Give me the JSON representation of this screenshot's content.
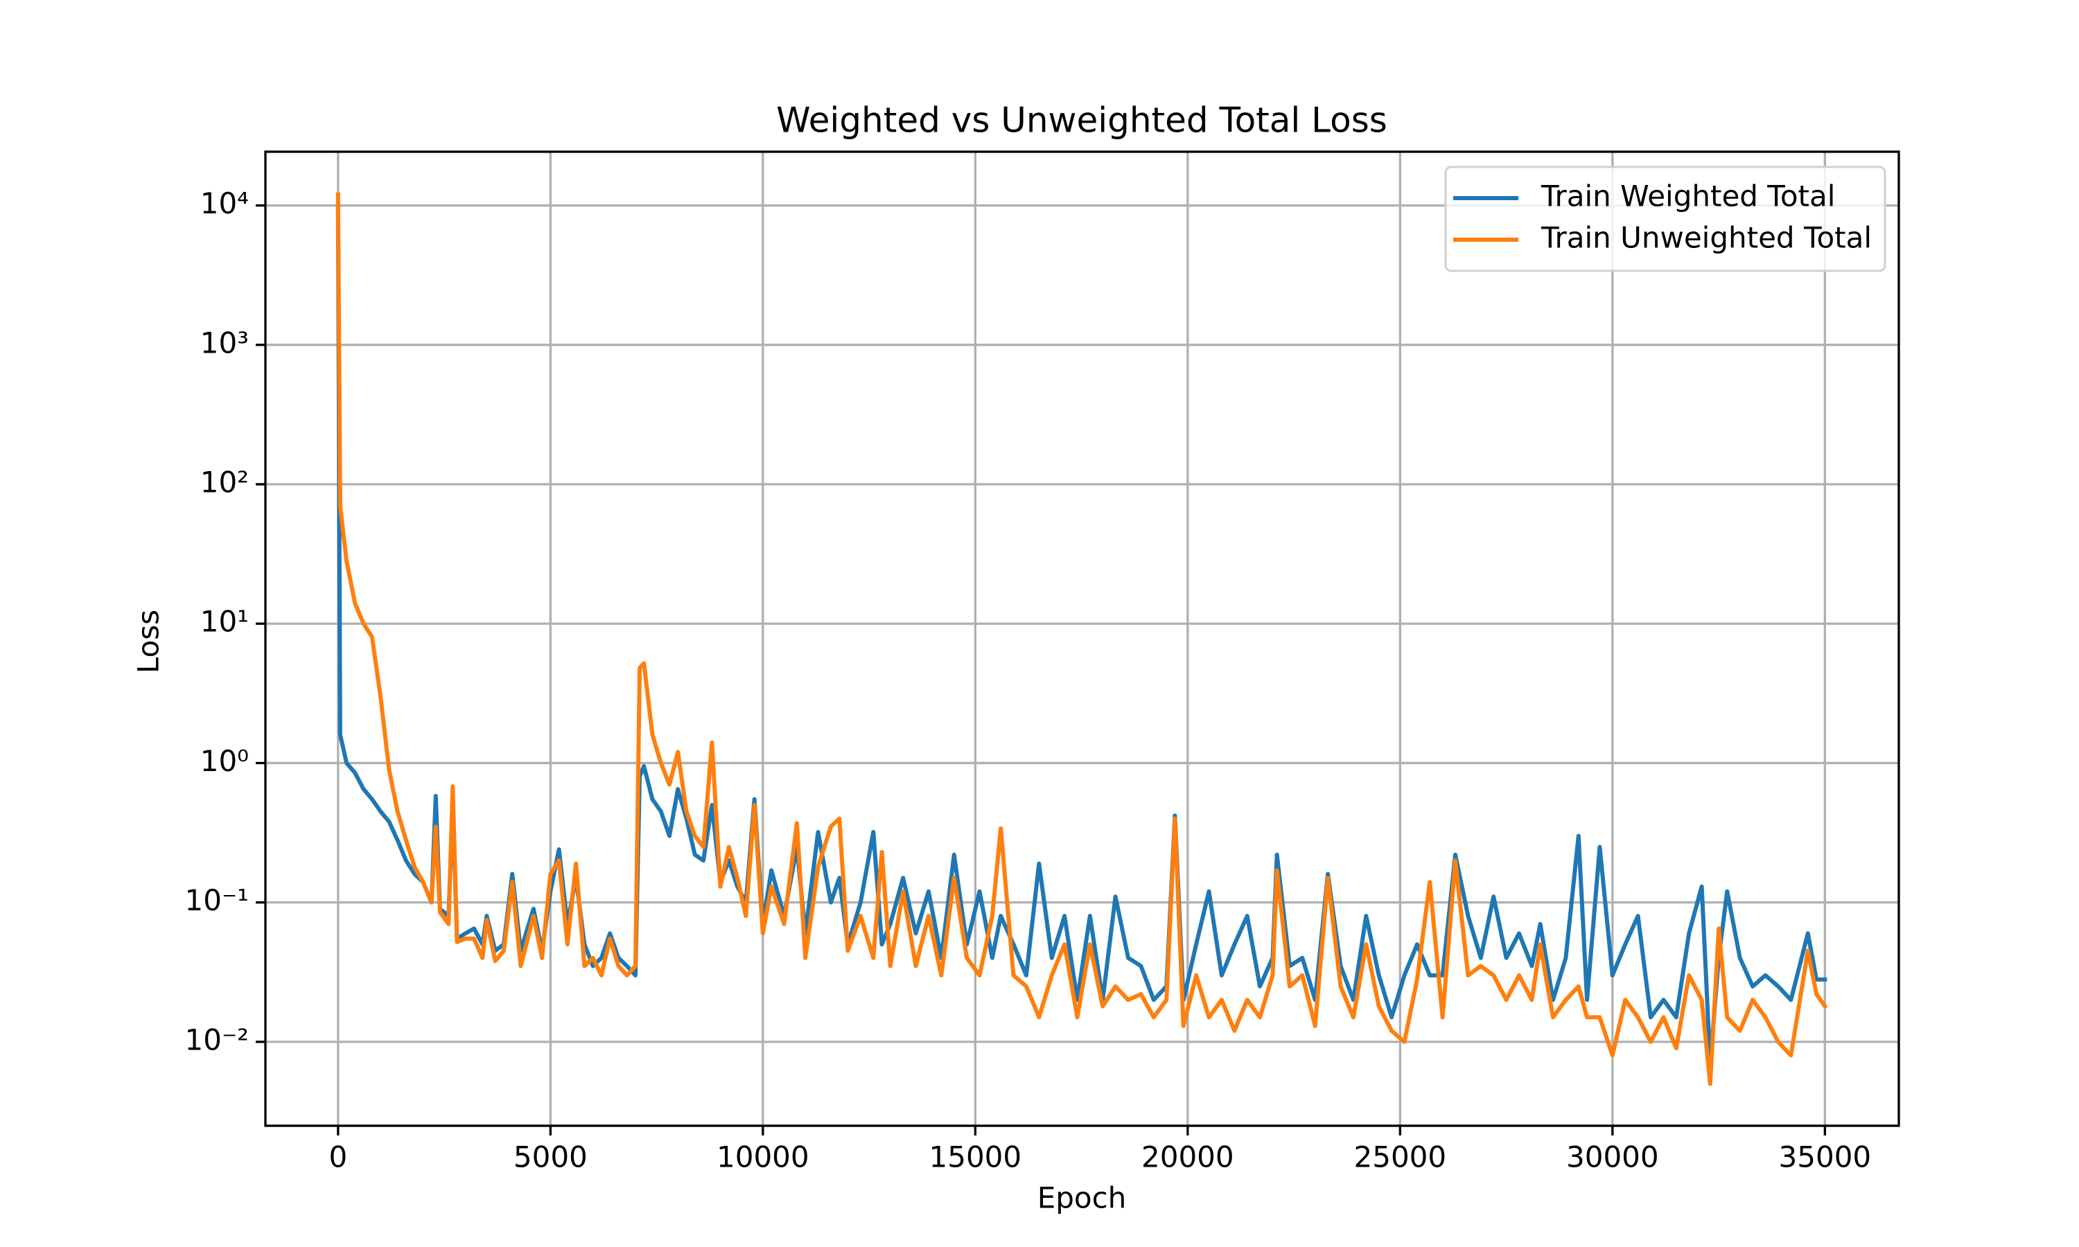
{
  "chart_data": {
    "type": "line",
    "title": "Weighted vs Unweighted Total Loss",
    "xlabel": "Epoch",
    "ylabel": "Loss",
    "yscale": "log",
    "grid": true,
    "legend": "upper right",
    "xlim": [
      -1710,
      36740
    ],
    "ylim": [
      0.0025,
      24300
    ],
    "xticks": [
      0,
      5000,
      10000,
      15000,
      20000,
      25000,
      30000,
      35000
    ],
    "yticks": [
      {
        "value": 0.01,
        "label": "10⁻²"
      },
      {
        "value": 0.1,
        "label": "10⁻¹"
      },
      {
        "value": 1,
        "label": "10⁰"
      },
      {
        "value": 10,
        "label": "10¹"
      },
      {
        "value": 100,
        "label": "10²"
      },
      {
        "value": 1000,
        "label": "10³"
      },
      {
        "value": 10000,
        "label": "10⁴"
      }
    ],
    "x": [
      0,
      50,
      200,
      400,
      600,
      800,
      1000,
      1200,
      1400,
      1600,
      1800,
      2000,
      2200,
      2300,
      2400,
      2600,
      2700,
      2800,
      3000,
      3200,
      3400,
      3500,
      3700,
      3900,
      4100,
      4300,
      4600,
      4800,
      5000,
      5200,
      5400,
      5600,
      5800,
      6000,
      6200,
      6400,
      6600,
      6800,
      7000,
      7100,
      7200,
      7400,
      7600,
      7800,
      8000,
      8200,
      8400,
      8600,
      8800,
      9000,
      9200,
      9400,
      9600,
      9800,
      10000,
      10200,
      10500,
      10800,
      11000,
      11300,
      11600,
      11800,
      12000,
      12300,
      12600,
      12800,
      13000,
      13300,
      13600,
      13900,
      14200,
      14500,
      14800,
      15100,
      15400,
      15600,
      15900,
      16200,
      16500,
      16800,
      17100,
      17400,
      17700,
      18000,
      18300,
      18600,
      18900,
      19200,
      19500,
      19700,
      19900,
      20200,
      20500,
      20800,
      21100,
      21400,
      21700,
      22000,
      22100,
      22400,
      22700,
      23000,
      23300,
      23600,
      23900,
      24200,
      24500,
      24800,
      25100,
      25400,
      25700,
      26000,
      26300,
      26600,
      26900,
      27200,
      27500,
      27800,
      28100,
      28300,
      28600,
      28900,
      29200,
      29400,
      29700,
      30000,
      30300,
      30600,
      30900,
      31200,
      31500,
      31800,
      32100,
      32300,
      32500,
      32700,
      33000,
      33300,
      33600,
      33900,
      34200,
      34600,
      34800,
      35000
    ],
    "series": [
      {
        "name": "Train Weighted Total",
        "color": "#1f77b4",
        "values": [
          10000,
          1.6,
          1.0,
          0.85,
          0.65,
          0.55,
          0.45,
          0.38,
          0.28,
          0.2,
          0.16,
          0.14,
          0.1,
          0.58,
          0.09,
          0.08,
          0.5,
          0.055,
          0.06,
          0.065,
          0.05,
          0.08,
          0.045,
          0.05,
          0.16,
          0.045,
          0.09,
          0.045,
          0.12,
          0.24,
          0.07,
          0.15,
          0.05,
          0.035,
          0.04,
          0.06,
          0.04,
          0.035,
          0.03,
          0.8,
          0.95,
          0.55,
          0.45,
          0.3,
          0.65,
          0.4,
          0.22,
          0.2,
          0.5,
          0.14,
          0.2,
          0.13,
          0.1,
          0.55,
          0.07,
          0.17,
          0.08,
          0.25,
          0.06,
          0.32,
          0.1,
          0.15,
          0.05,
          0.1,
          0.32,
          0.05,
          0.07,
          0.15,
          0.06,
          0.12,
          0.04,
          0.22,
          0.05,
          0.12,
          0.04,
          0.08,
          0.05,
          0.03,
          0.19,
          0.04,
          0.08,
          0.02,
          0.08,
          0.02,
          0.11,
          0.04,
          0.035,
          0.02,
          0.025,
          0.42,
          0.02,
          0.05,
          0.12,
          0.03,
          0.05,
          0.08,
          0.025,
          0.04,
          0.22,
          0.035,
          0.04,
          0.02,
          0.16,
          0.035,
          0.02,
          0.08,
          0.03,
          0.015,
          0.03,
          0.05,
          0.03,
          0.03,
          0.22,
          0.08,
          0.04,
          0.11,
          0.04,
          0.06,
          0.035,
          0.07,
          0.02,
          0.04,
          0.3,
          0.02,
          0.25,
          0.03,
          0.05,
          0.08,
          0.015,
          0.02,
          0.015,
          0.06,
          0.13,
          0.007,
          0.04,
          0.12,
          0.04,
          0.025,
          0.03,
          0.025,
          0.02,
          0.06,
          0.028,
          0.028
        ]
      },
      {
        "name": "Train Unweighted Total",
        "color": "#ff7f0e",
        "values": [
          12000,
          70,
          28,
          14,
          10,
          8,
          3,
          0.9,
          0.45,
          0.28,
          0.18,
          0.14,
          0.1,
          0.35,
          0.085,
          0.07,
          0.68,
          0.052,
          0.055,
          0.055,
          0.04,
          0.075,
          0.038,
          0.045,
          0.14,
          0.035,
          0.08,
          0.04,
          0.16,
          0.2,
          0.05,
          0.19,
          0.035,
          0.04,
          0.03,
          0.055,
          0.035,
          0.03,
          0.035,
          4.8,
          5.2,
          1.6,
          1.0,
          0.7,
          1.2,
          0.45,
          0.3,
          0.25,
          1.4,
          0.13,
          0.25,
          0.15,
          0.08,
          0.5,
          0.06,
          0.13,
          0.07,
          0.37,
          0.04,
          0.18,
          0.35,
          0.4,
          0.045,
          0.08,
          0.04,
          0.23,
          0.035,
          0.12,
          0.035,
          0.08,
          0.03,
          0.15,
          0.04,
          0.03,
          0.08,
          0.34,
          0.03,
          0.025,
          0.015,
          0.03,
          0.05,
          0.015,
          0.05,
          0.018,
          0.025,
          0.02,
          0.022,
          0.015,
          0.02,
          0.4,
          0.013,
          0.03,
          0.015,
          0.02,
          0.012,
          0.02,
          0.015,
          0.03,
          0.17,
          0.025,
          0.03,
          0.013,
          0.15,
          0.025,
          0.015,
          0.05,
          0.018,
          0.012,
          0.01,
          0.028,
          0.14,
          0.015,
          0.2,
          0.03,
          0.035,
          0.03,
          0.02,
          0.03,
          0.02,
          0.05,
          0.015,
          0.02,
          0.025,
          0.015,
          0.015,
          0.008,
          0.02,
          0.015,
          0.01,
          0.015,
          0.009,
          0.03,
          0.02,
          0.005,
          0.065,
          0.015,
          0.012,
          0.02,
          0.015,
          0.01,
          0.008,
          0.045,
          0.022,
          0.018
        ]
      }
    ]
  }
}
